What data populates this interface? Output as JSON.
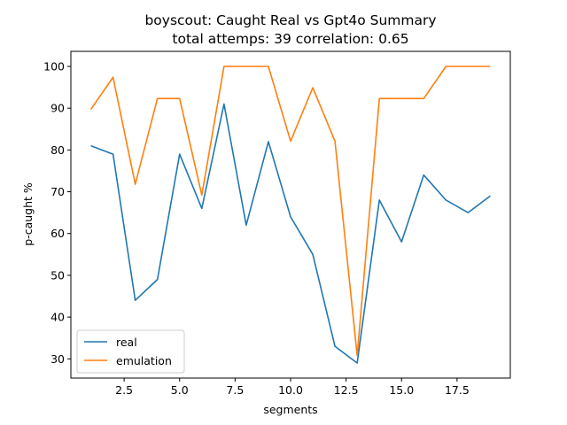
{
  "chart_data": {
    "type": "line",
    "title": "boyscout: Caught Real vs Gpt4o Summary",
    "subtitle": "total attemps: 39 correlation: 0.65",
    "xlabel": "segments",
    "ylabel": "p-caught %",
    "xlim": [
      0.1,
      19.9
    ],
    "ylim": [
      25.4,
      103.6
    ],
    "xticks": [
      2.5,
      5.0,
      7.5,
      10.0,
      12.5,
      15.0,
      17.5
    ],
    "xtick_labels": [
      "2.5",
      "5.0",
      "7.5",
      "10.0",
      "12.5",
      "15.0",
      "17.5"
    ],
    "yticks": [
      30,
      40,
      50,
      60,
      70,
      80,
      90,
      100
    ],
    "ytick_labels": [
      "30",
      "40",
      "50",
      "60",
      "70",
      "80",
      "90",
      "100"
    ],
    "grid": false,
    "legend_position": "lower-left",
    "x": [
      1,
      2,
      3,
      4,
      5,
      6,
      7,
      8,
      9,
      10,
      11,
      12,
      13,
      14,
      15,
      16,
      17,
      18,
      19
    ],
    "series": [
      {
        "name": "real",
        "color": "#1f77b4",
        "values": [
          81,
          79,
          44,
          49,
          79,
          66,
          91,
          62,
          82,
          64,
          55,
          33,
          29,
          68,
          58,
          74,
          68,
          65,
          69
        ]
      },
      {
        "name": "emulation",
        "color": "#ff7f0e",
        "values": [
          89.7,
          97.4,
          71.8,
          92.3,
          92.3,
          69.2,
          100,
          100,
          100,
          82.1,
          94.9,
          82.1,
          30.8,
          92.3,
          92.3,
          92.3,
          100,
          100,
          100
        ]
      }
    ]
  }
}
